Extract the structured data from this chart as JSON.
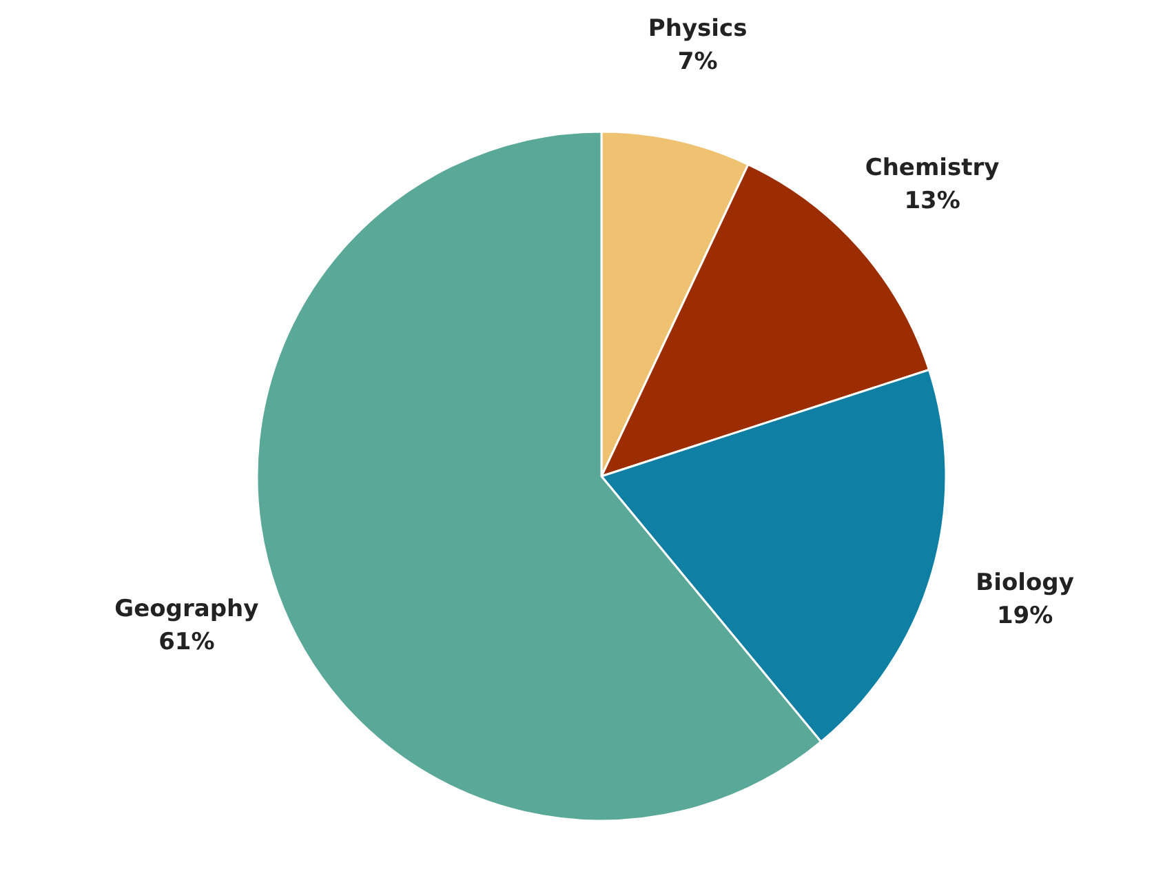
{
  "chart_data": {
    "type": "pie",
    "categories": [
      "Physics",
      "Chemistry",
      "Biology",
      "Geography"
    ],
    "values": [
      7,
      13,
      19,
      61
    ],
    "value_labels": [
      "7%",
      "13%",
      "19%",
      "61%"
    ],
    "colors": [
      "#eec271",
      "#9b2d00",
      "#0f7fa3",
      "#5aa898"
    ],
    "data_labels": true,
    "legend": false
  }
}
